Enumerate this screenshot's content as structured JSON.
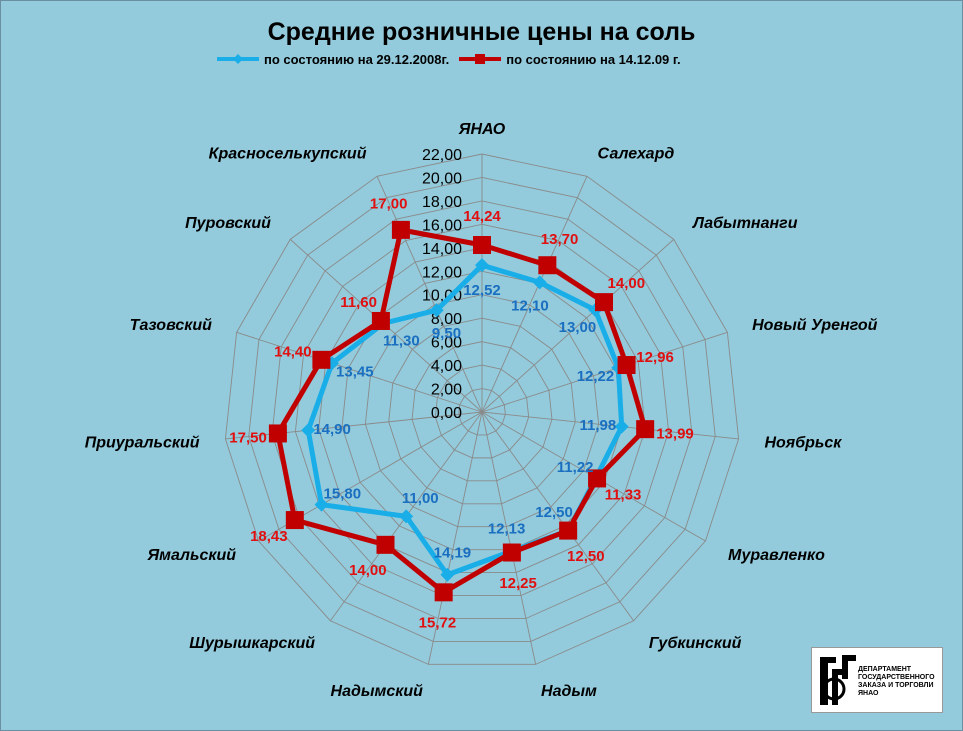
{
  "chart_data": {
    "type": "radar",
    "title": "Средние розничные цены на соль",
    "categories": [
      "ЯНАО",
      "Салехард",
      "Лабытнанги",
      "Новый Уренгой",
      "Ноябрьск",
      "Муравленко",
      "Губкинский",
      "Надым",
      "Надымский",
      "Шурышкарский",
      "Ямальский",
      "Приуральский",
      "Тазовский",
      "Пуровский",
      "Красноселькупский"
    ],
    "series": [
      {
        "name": "по состоянию на 29.12.2008г.",
        "color": "#19aee8",
        "values": [
          12.52,
          12.1,
          13.0,
          12.22,
          11.98,
          11.22,
          12.5,
          12.13,
          14.19,
          11.0,
          15.8,
          14.9,
          13.45,
          11.3,
          9.5
        ]
      },
      {
        "name": "по состоянию на 14.12.09 г.",
        "color": "#c00000",
        "values": [
          14.24,
          13.7,
          14.0,
          12.96,
          13.99,
          11.33,
          12.5,
          12.25,
          15.72,
          14.0,
          18.43,
          17.5,
          14.4,
          11.6,
          17.0
        ]
      }
    ],
    "value_labels": {
      "old": [
        "12,52",
        "12,10",
        "13,00",
        "12,22",
        "11,98",
        "11,22",
        "12,50",
        "12,13",
        "14,19",
        "11,00",
        "15,80",
        "14,90",
        "13,45",
        "11,30",
        "9,50"
      ],
      "new": [
        "14,24",
        "13,70",
        "14,00",
        "12,96",
        "13,99",
        "11,33",
        "12,50",
        "12,25",
        "15,72",
        "14,00",
        "18,43",
        "17,50",
        "14,40",
        "11,60",
        "17,00"
      ]
    },
    "ticks": [
      "0,00",
      "2,00",
      "4,00",
      "6,00",
      "8,00",
      "10,00",
      "12,00",
      "14,00",
      "16,00",
      "18,00",
      "20,00",
      "22,00"
    ],
    "rmax": 22,
    "legend_position": "top",
    "grid": true
  },
  "logo": {
    "text": "Департамент государственного заказа и торговли ЯНАО"
  }
}
